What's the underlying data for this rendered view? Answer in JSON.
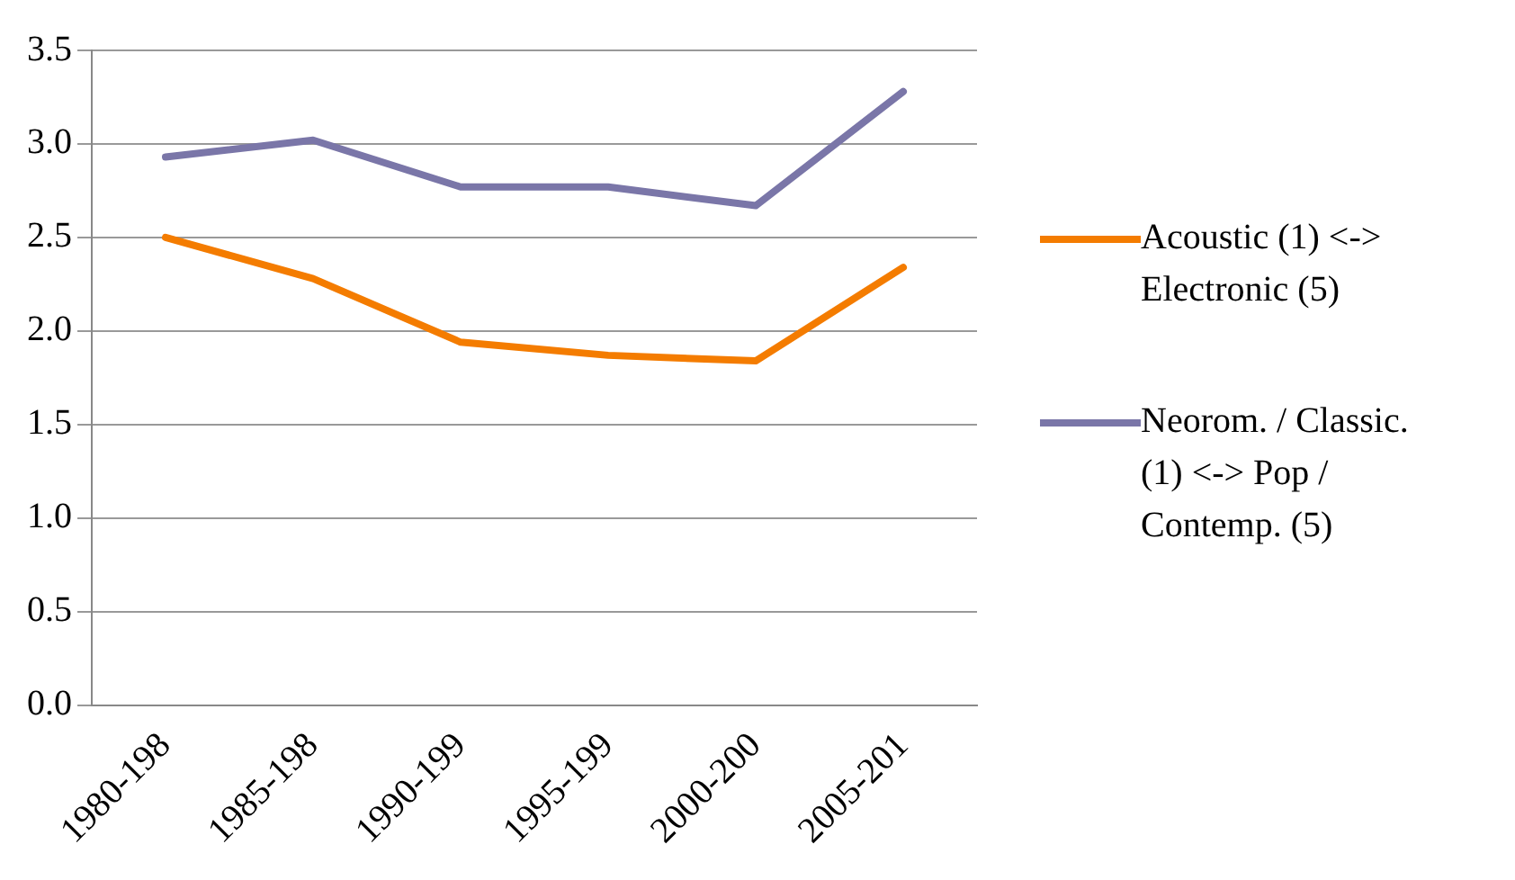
{
  "chart_data": {
    "type": "line",
    "categories": [
      "1980-198",
      "1985-198",
      "1990-199",
      "1995-199",
      "2000-200",
      "2005-201"
    ],
    "series": [
      {
        "name": "Acoustic (1) <-> Electronic (5)",
        "color": "#f47c00",
        "values": [
          2.5,
          2.28,
          1.94,
          1.87,
          1.84,
          2.34
        ]
      },
      {
        "name": "Neorom. / Classic. (1) <-> Pop / Contemp. (5)",
        "color": "#7a76a8",
        "values": [
          2.93,
          3.02,
          2.77,
          2.77,
          2.67,
          3.28
        ]
      }
    ],
    "ylim": [
      0,
      3.5
    ],
    "yticks": [
      {
        "value": 0,
        "label": "0.0"
      },
      0.5,
      {
        "value": 1,
        "label": "1.0"
      },
      1.5,
      {
        "value": 2,
        "label": "2.0"
      },
      2.5,
      {
        "value": 3,
        "label": "3.0"
      },
      3.5
    ],
    "grid": "y",
    "legend": "right",
    "marker": "none",
    "line_style": "solid"
  }
}
